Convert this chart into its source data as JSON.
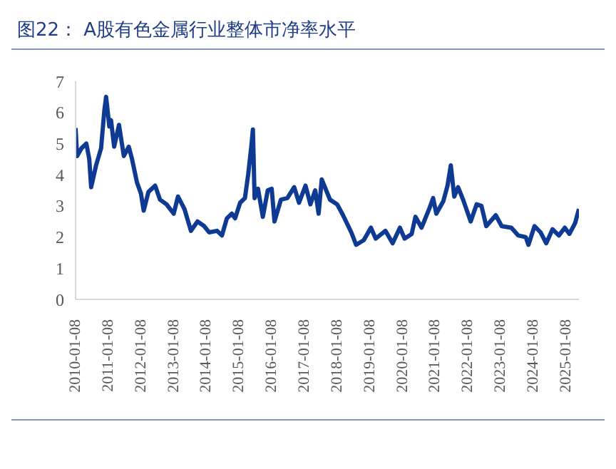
{
  "chart_data": {
    "type": "line",
    "title": "图22：  A股有色金属行业整体市净率水平",
    "x": [
      "2010-01-08",
      "2010-01-25",
      "2010-03-15",
      "2010-05-08",
      "2010-06-10",
      "2010-07-01",
      "2010-08-25",
      "2010-10-20",
      "2010-11-25",
      "2010-12-15",
      "2011-01-20",
      "2011-02-08",
      "2011-03-15",
      "2011-05-08",
      "2011-07-01",
      "2011-08-25",
      "2011-10-01",
      "2011-11-25",
      "2012-01-08",
      "2012-02-08",
      "2012-04-01",
      "2012-06-15",
      "2012-08-08",
      "2012-10-20",
      "2013-01-08",
      "2013-02-25",
      "2013-05-08",
      "2013-07-20",
      "2013-10-01",
      "2013-12-15",
      "2014-02-08",
      "2014-05-08",
      "2014-07-01",
      "2014-08-25",
      "2014-10-20",
      "2014-11-25",
      "2015-01-20",
      "2015-03-15",
      "2015-04-20",
      "2015-05-25",
      "2015-06-12",
      "2015-07-01",
      "2015-08-08",
      "2015-10-01",
      "2015-11-25",
      "2016-01-08",
      "2016-02-08",
      "2016-04-20",
      "2016-07-01",
      "2016-09-15",
      "2016-11-08",
      "2017-01-20",
      "2017-03-15",
      "2017-05-08",
      "2017-06-15",
      "2017-07-20",
      "2017-10-20",
      "2018-01-08",
      "2018-03-15",
      "2018-06-15",
      "2018-08-08",
      "2018-11-01",
      "2019-01-20",
      "2019-03-15",
      "2019-07-01",
      "2019-09-20",
      "2019-12-10",
      "2020-02-01",
      "2020-04-20",
      "2020-06-01",
      "2020-08-08",
      "2020-11-01",
      "2020-12-15",
      "2021-01-20",
      "2021-04-08",
      "2021-05-25",
      "2021-07-01",
      "2021-08-08",
      "2021-09-20",
      "2021-11-15",
      "2022-02-08",
      "2022-04-15",
      "2022-06-08",
      "2022-08-01",
      "2022-11-15",
      "2023-01-20",
      "2023-05-08",
      "2023-07-25",
      "2023-10-15",
      "2023-11-15",
      "2024-01-22",
      "2024-03-30",
      "2024-06-01",
      "2024-08-10",
      "2024-10-20",
      "2024-12-25",
      "2025-02-15",
      "2025-04-20",
      "2025-06-01"
    ],
    "series": [
      {
        "color": "#0f3a94",
        "values": [
          5.5,
          4.6,
          4.85,
          5.0,
          4.5,
          3.6,
          4.3,
          4.85,
          6.05,
          6.5,
          5.55,
          5.75,
          4.9,
          5.6,
          4.6,
          4.9,
          4.5,
          3.75,
          3.4,
          2.85,
          3.45,
          3.65,
          3.2,
          3.05,
          2.75,
          3.3,
          2.9,
          2.2,
          2.5,
          2.35,
          2.15,
          2.2,
          2.05,
          2.6,
          2.75,
          2.6,
          3.1,
          3.25,
          4.0,
          4.9,
          5.45,
          3.25,
          3.55,
          2.65,
          3.5,
          3.55,
          2.5,
          3.2,
          3.25,
          3.6,
          3.1,
          3.65,
          3.05,
          3.5,
          2.75,
          3.85,
          3.2,
          3.05,
          2.7,
          2.15,
          1.75,
          1.9,
          2.3,
          1.95,
          2.2,
          1.8,
          2.3,
          1.95,
          2.1,
          2.65,
          2.3,
          2.9,
          3.25,
          2.75,
          3.15,
          3.65,
          4.3,
          3.3,
          3.6,
          3.2,
          2.5,
          3.05,
          3.0,
          2.35,
          2.7,
          2.35,
          2.3,
          2.05,
          2.0,
          1.75,
          2.35,
          2.15,
          1.8,
          2.25,
          2.05,
          2.3,
          2.1,
          2.45,
          2.9
        ]
      }
    ],
    "xlim": [
      "2010-01-08",
      "2025-06-01"
    ],
    "xticks": [
      "2010-01-08",
      "2011-01-08",
      "2012-01-08",
      "2013-01-08",
      "2014-01-08",
      "2015-01-08",
      "2016-01-08",
      "2017-01-08",
      "2018-01-08",
      "2019-01-08",
      "2020-01-08",
      "2021-01-08",
      "2022-01-08",
      "2023-01-08",
      "2024-01-08",
      "2025-01-08"
    ],
    "ylim": [
      0,
      7
    ],
    "yticks": [
      0,
      1,
      2,
      3,
      4,
      5,
      6,
      7
    ],
    "grid": false,
    "legend": false,
    "marker": "none",
    "line_style": "solid"
  }
}
